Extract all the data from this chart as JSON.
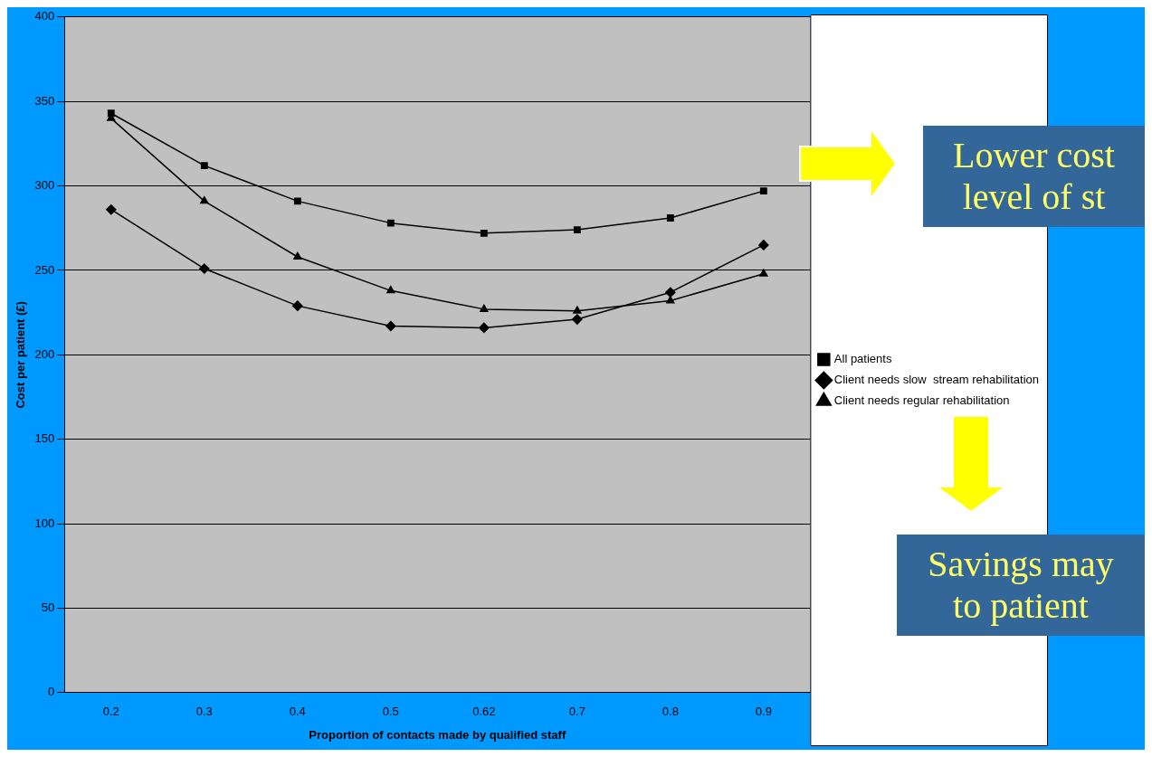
{
  "chart_data": {
    "type": "line",
    "xlabel": "Proportion of contacts made by qualified staff",
    "ylabel": "Cost per patient (£)",
    "categories": [
      "0.2",
      "0.3",
      "0.4",
      "0.5",
      "0.62",
      "0.7",
      "0.8",
      "0.9"
    ],
    "series": [
      {
        "name": "All patients",
        "color": "#000000",
        "marker": "square",
        "values": [
          343,
          312,
          291,
          278,
          272,
          274,
          281,
          297
        ]
      },
      {
        "name": "Client needs slow  stream rehabilitation",
        "color": "#000000",
        "marker": "diamond",
        "values": [
          286,
          251,
          229,
          217,
          216,
          221,
          237,
          265
        ]
      },
      {
        "name": "Client needs regular rehabilitation",
        "color": "#000000",
        "marker": "triangle",
        "values": [
          340,
          291,
          258,
          238,
          227,
          226,
          232,
          248
        ]
      }
    ],
    "ylim": [
      0,
      400
    ],
    "yticks": [
      0,
      50,
      100,
      150,
      200,
      250,
      300,
      350,
      400
    ],
    "grid": "y",
    "legend": "right",
    "line_style": "solid",
    "annotations": [
      "Lower cost\nlevel of st",
      "Savings may\nto patient"
    ]
  }
}
